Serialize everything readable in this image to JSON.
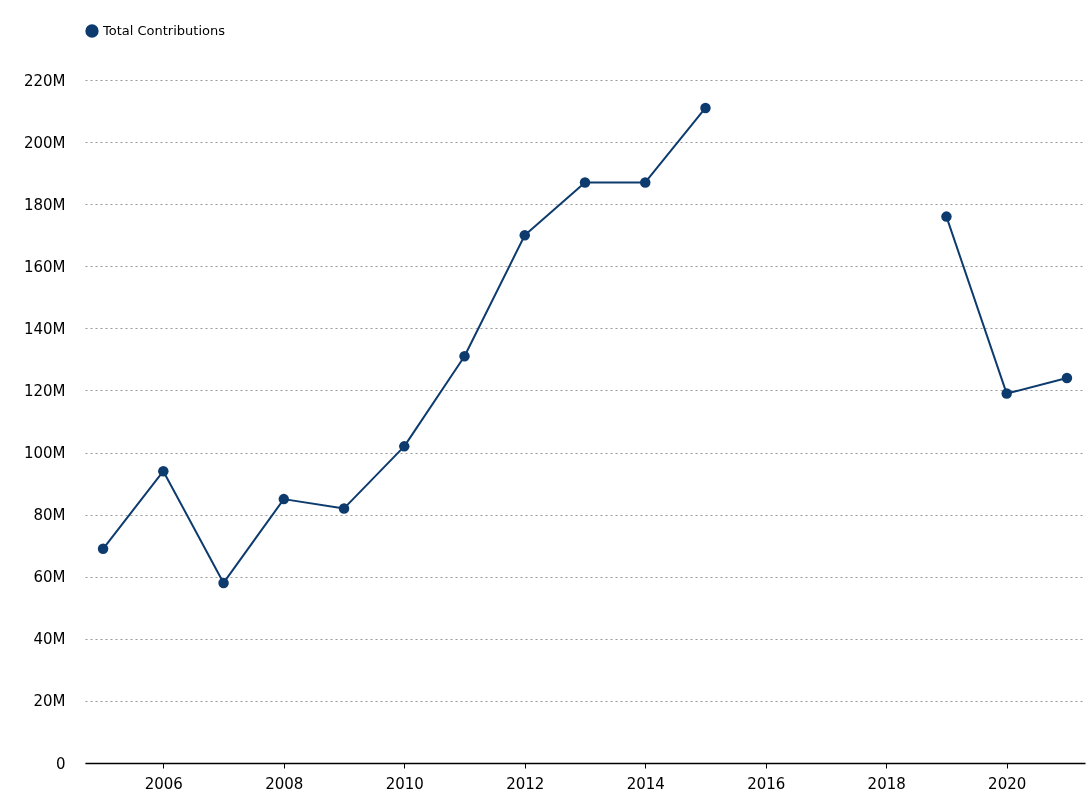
{
  "chart_data": {
    "type": "line",
    "x": [
      2005,
      2006,
      2007,
      2008,
      2009,
      2010,
      2011,
      2012,
      2013,
      2014,
      2015,
      2016,
      2017,
      2018,
      2019,
      2020,
      2021
    ],
    "series": [
      {
        "name": "Total Contributions",
        "color": "#0d3b6e",
        "values": [
          69,
          94,
          58,
          85,
          82,
          102,
          131,
          170,
          187,
          187,
          211,
          null,
          null,
          null,
          176,
          119,
          124
        ]
      }
    ],
    "xlim": [
      2004.7,
      2021.3
    ],
    "xticks": [
      2006,
      2008,
      2010,
      2012,
      2014,
      2016,
      2018,
      2020
    ],
    "ylim": [
      0,
      220
    ],
    "yticks": [
      {
        "value": 0,
        "label": "0"
      },
      {
        "value": 20,
        "label": "20M"
      },
      {
        "value": 40,
        "label": "40M"
      },
      {
        "value": 60,
        "label": "60M"
      },
      {
        "value": 80,
        "label": "80M"
      },
      {
        "value": 100,
        "label": "100M"
      },
      {
        "value": 120,
        "label": "120M"
      },
      {
        "value": 140,
        "label": "140M"
      },
      {
        "value": 160,
        "label": "160M"
      },
      {
        "value": 180,
        "label": "180M"
      },
      {
        "value": 200,
        "label": "200M"
      },
      {
        "value": 220,
        "label": "220M"
      }
    ],
    "grid": "y",
    "legend": "top",
    "marker": "circle",
    "line_style": "solid"
  }
}
